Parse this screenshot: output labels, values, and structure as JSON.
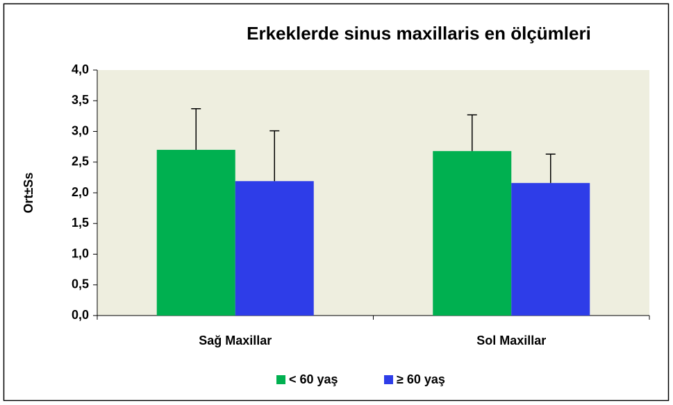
{
  "chart_data": {
    "type": "bar",
    "title": "Erkeklerde sinus maxillaris en ölçümleri",
    "ylabel": "Ort±Ss",
    "categories": [
      "Sağ Maxillar",
      "Sol Maxillar"
    ],
    "series": [
      {
        "name": "< 60 yaş",
        "color": "#00b050",
        "values": [
          2.7,
          2.68
        ],
        "errors": [
          0.67,
          0.59
        ]
      },
      {
        "name": "≥ 60 yaş",
        "color": "#2e3de8",
        "values": [
          2.19,
          2.16
        ],
        "errors": [
          0.82,
          0.47
        ]
      }
    ],
    "ylim": [
      0,
      4
    ],
    "yticks": [
      {
        "value": 0,
        "label": "0,0"
      },
      {
        "value": 0.5,
        "label": "0,5"
      },
      {
        "value": 1,
        "label": "1,0"
      },
      {
        "value": 1.5,
        "label": "1,5"
      },
      {
        "value": 2,
        "label": "2,0"
      },
      {
        "value": 2.5,
        "label": "2,5"
      },
      {
        "value": 3,
        "label": "3,0"
      },
      {
        "value": 3.5,
        "label": "3,5"
      },
      {
        "value": 4,
        "label": "4,0"
      }
    ],
    "legend": "bottom"
  }
}
